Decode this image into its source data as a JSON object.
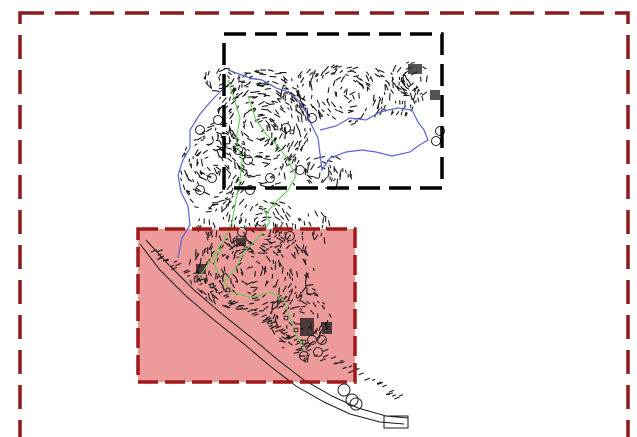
{
  "drawing": {
    "type": "site survey plan / contour map",
    "background_color": "#ffffff",
    "outer_frame": {
      "style": "long-dash",
      "color": "#8b1a1a"
    },
    "upper_viewport": {
      "style": "long-dash",
      "color": "#000000",
      "fill": "none"
    },
    "lower_viewport": {
      "style": "dash",
      "color": "#a01818",
      "fill": "#ec9a9a"
    },
    "linework": {
      "contour_color": "#1a1a1a",
      "boundary_color": "#5b63d6",
      "drainage_color": "#66cc55",
      "marker_color": "#222222"
    },
    "icons": [
      "circle-marker-icon",
      "square-marker-icon"
    ]
  }
}
